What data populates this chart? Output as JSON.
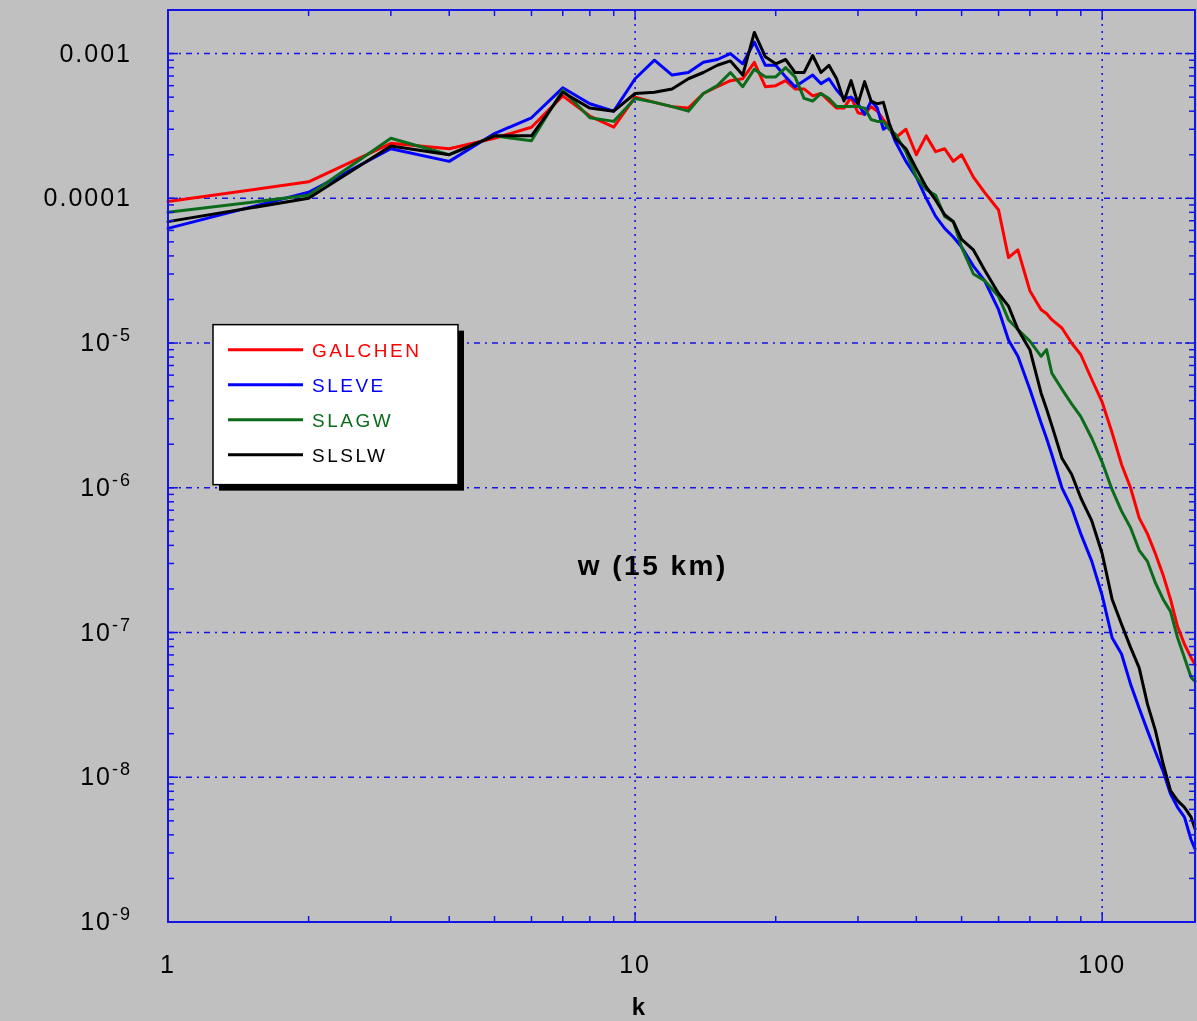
{
  "chart_data": {
    "type": "line",
    "title": "w (15 km)",
    "xlabel": "k",
    "log": "xy",
    "grid": true,
    "legend": "left",
    "xlim": [
      1,
      158
    ],
    "ylim": [
      1e-09,
      0.002
    ],
    "xticks": [
      1,
      {
        "value": 2,
        "label": null
      },
      {
        "value": 3,
        "label": null
      },
      {
        "value": 4,
        "label": null
      },
      {
        "value": 5,
        "label": null
      },
      {
        "value": 6,
        "label": null
      },
      {
        "value": 7,
        "label": null
      },
      {
        "value": 8,
        "label": null
      },
      {
        "value": 9,
        "label": null
      },
      10,
      {
        "value": 20,
        "label": null
      },
      {
        "value": 30,
        "label": null
      },
      {
        "value": 40,
        "label": null
      },
      {
        "value": 50,
        "label": null
      },
      {
        "value": 60,
        "label": null
      },
      {
        "value": 70,
        "label": null
      },
      {
        "value": 80,
        "label": null
      },
      {
        "value": 90,
        "label": null
      },
      100
    ],
    "yticks": [
      {
        "value": 1e-09,
        "label": "10$^{-9}$"
      },
      {
        "value": 2e-09,
        "label": null
      },
      {
        "value": 3e-09,
        "label": null
      },
      {
        "value": 4e-09,
        "label": null
      },
      {
        "value": 5e-09,
        "label": null
      },
      {
        "value": 6e-09,
        "label": null
      },
      {
        "value": 7e-09,
        "label": null
      },
      {
        "value": 8e-09,
        "label": null
      },
      {
        "value": 9e-09,
        "label": null
      },
      {
        "value": 1e-08,
        "label": "10$^{-8}$"
      },
      {
        "value": 2e-08,
        "label": null
      },
      {
        "value": 3e-08,
        "label": null
      },
      {
        "value": 4e-08,
        "label": null
      },
      {
        "value": 5e-08,
        "label": null
      },
      {
        "value": 6e-08,
        "label": null
      },
      {
        "value": 7e-08,
        "label": null
      },
      {
        "value": 8e-08,
        "label": null
      },
      {
        "value": 9e-08,
        "label": null
      },
      {
        "value": 1e-07,
        "label": "10$^{-7}$"
      },
      {
        "value": 2e-07,
        "label": null
      },
      {
        "value": 3e-07,
        "label": null
      },
      {
        "value": 4e-07,
        "label": null
      },
      {
        "value": 5e-07,
        "label": null
      },
      {
        "value": 6e-07,
        "label": null
      },
      {
        "value": 7e-07,
        "label": null
      },
      {
        "value": 8e-07,
        "label": null
      },
      {
        "value": 9e-07,
        "label": null
      },
      {
        "value": 1e-06,
        "label": "10$^{-6}$"
      },
      {
        "value": 2e-06,
        "label": null
      },
      {
        "value": 3e-06,
        "label": null
      },
      {
        "value": 4e-06,
        "label": null
      },
      {
        "value": 5e-06,
        "label": null
      },
      {
        "value": 6e-06,
        "label": null
      },
      {
        "value": 7e-06,
        "label": null
      },
      {
        "value": 8e-06,
        "label": null
      },
      {
        "value": 9e-06,
        "label": null
      },
      {
        "value": 1e-05,
        "label": "10$^{-5}$"
      },
      {
        "value": 2e-05,
        "label": null
      },
      {
        "value": 3e-05,
        "label": null
      },
      {
        "value": 4e-05,
        "label": null
      },
      {
        "value": 5e-05,
        "label": null
      },
      {
        "value": 6e-05,
        "label": null
      },
      {
        "value": 7e-05,
        "label": null
      },
      {
        "value": 8e-05,
        "label": null
      },
      {
        "value": 9e-05,
        "label": null
      },
      0.0001,
      {
        "value": 0.0002,
        "label": null
      },
      {
        "value": 0.0003,
        "label": null
      },
      {
        "value": 0.0004,
        "label": null
      },
      {
        "value": 0.0005,
        "label": null
      },
      {
        "value": 0.0006,
        "label": null
      },
      {
        "value": 0.0007,
        "label": null
      },
      {
        "value": 0.0008,
        "label": null
      },
      {
        "value": 0.0009,
        "label": null
      },
      0.001
    ],
    "x": [
      1,
      2,
      3,
      4,
      5,
      6,
      7,
      8,
      9,
      10,
      11,
      12,
      13,
      14,
      15,
      16,
      17,
      18,
      19,
      20,
      21,
      22,
      23,
      24,
      25,
      26,
      27,
      28,
      29,
      30,
      31,
      32,
      33,
      34,
      35,
      36,
      38,
      40,
      42,
      44,
      46,
      48,
      50,
      53,
      56,
      60,
      63,
      66,
      70,
      74,
      76,
      78,
      82,
      86,
      90,
      95,
      100,
      105,
      110,
      115,
      120,
      125,
      130,
      135,
      140,
      145,
      150,
      155,
      158
    ],
    "series": [
      {
        "name": "GALCHEN",
        "color": "#ff0000",
        "values": [
          9.5e-05,
          0.00013,
          0.00024,
          0.00022,
          0.00026,
          0.00031,
          0.00051,
          0.00037,
          0.00031,
          0.0005,
          0.00046,
          0.00043,
          0.00042,
          0.00053,
          0.00059,
          0.00065,
          0.00067,
          0.00087,
          0.00059,
          0.0006,
          0.00065,
          0.00057,
          0.00057,
          0.00051,
          0.00053,
          0.00047,
          0.00042,
          0.00042,
          0.0005,
          0.00039,
          0.00038,
          0.00043,
          0.0004,
          0.00035,
          0.00031,
          0.00026,
          0.0003,
          0.0002,
          0.00027,
          0.00021,
          0.00022,
          0.00018,
          0.0002,
          0.00014,
          0.00011,
          8.3e-05,
          3.9e-05,
          4.4e-05,
          2.3e-05,
          1.7e-05,
          1.6e-05,
          1.45e-05,
          1.27e-05,
          1e-05,
          8.3e-06,
          5.6e-06,
          3.9e-06,
          2.4e-06,
          1.45e-06,
          1e-06,
          6.2e-07,
          4.8e-07,
          3.5e-07,
          2.5e-07,
          1.7e-07,
          1.1e-07,
          8.3e-08,
          6.7e-08,
          6e-08
        ]
      },
      {
        "name": "SLEVE",
        "color": "#0000ff",
        "values": [
          6.2e-05,
          0.00011,
          0.00022,
          0.00018,
          0.00028,
          0.00036,
          0.00058,
          0.00045,
          0.0004,
          0.00067,
          0.0009,
          0.00071,
          0.00074,
          0.00087,
          0.00091,
          0.001,
          0.00085,
          0.0012,
          0.00083,
          0.00083,
          0.00069,
          0.00059,
          0.00065,
          0.00071,
          0.00062,
          0.00067,
          0.00056,
          0.00049,
          0.0005,
          0.00045,
          0.00038,
          0.00047,
          0.00042,
          0.0003,
          0.00032,
          0.00025,
          0.00018,
          0.00014,
          0.0001,
          7.5e-05,
          6.2e-05,
          5.4e-05,
          4.6e-05,
          3.4e-05,
          2.7e-05,
          1.7e-05,
          1.05e-05,
          8.1e-06,
          4.8e-06,
          2.8e-06,
          2.2e-06,
          1.7e-06,
          1e-06,
          7.3e-07,
          4.8e-07,
          3.1e-07,
          1.8e-07,
          9.2e-08,
          7.1e-08,
          4.4e-08,
          3e-08,
          2.1e-08,
          1.5e-08,
          1.1e-08,
          7.7e-09,
          6.2e-09,
          5.3e-09,
          3.7e-09,
          3.2e-09
        ]
      },
      {
        "name": "SLAGW",
        "color": "#0b6b1b",
        "values": [
          8e-05,
          0.000105,
          0.00026,
          0.0002,
          0.00027,
          0.00025,
          0.00056,
          0.00036,
          0.00034,
          0.00049,
          0.00046,
          0.00043,
          0.0004,
          0.00053,
          0.0006,
          0.00074,
          0.00059,
          0.00078,
          0.00069,
          0.00069,
          0.0008,
          0.00069,
          0.00049,
          0.00047,
          0.00053,
          0.00049,
          0.00043,
          0.00043,
          0.00043,
          0.00043,
          0.00042,
          0.00035,
          0.00034,
          0.00034,
          0.0003,
          0.00028,
          0.00021,
          0.00014,
          0.000115,
          0.000105,
          7.5e-05,
          6.9e-05,
          4.6e-05,
          3e-05,
          2.7e-05,
          2.1e-05,
          1.45e-05,
          1.24e-05,
          1.03e-05,
          8.1e-06,
          9e-06,
          6.2e-06,
          4.8e-06,
          3.8e-06,
          3.1e-06,
          2.2e-06,
          1.5e-06,
          9.7e-07,
          6.9e-07,
          5.3e-07,
          3.7e-07,
          3.1e-07,
          2.2e-07,
          1.7e-07,
          1.4e-07,
          9.2e-08,
          6.7e-08,
          4.9e-08,
          4.6e-08
        ]
      },
      {
        "name": "SLSLW",
        "color": "#000000",
        "values": [
          6.9e-05,
          0.0001,
          0.00023,
          0.0002,
          0.00027,
          0.00027,
          0.00054,
          0.00042,
          0.0004,
          0.00053,
          0.00054,
          0.00057,
          0.00067,
          0.00074,
          0.00083,
          0.00089,
          0.00071,
          0.0014,
          0.00095,
          0.00085,
          0.00091,
          0.00074,
          0.00074,
          0.00097,
          0.00074,
          0.00083,
          0.00067,
          0.00047,
          0.00065,
          0.00045,
          0.00064,
          0.00047,
          0.00045,
          0.00046,
          0.00033,
          0.00026,
          0.00022,
          0.00016,
          0.00012,
          9.7e-05,
          7.7e-05,
          6.9e-05,
          5.2e-05,
          4.4e-05,
          3.2e-05,
          2.2e-05,
          1.8e-05,
          1.24e-05,
          9e-06,
          4.5e-06,
          3.5e-06,
          2.7e-06,
          1.6e-06,
          1.24e-06,
          8.5e-07,
          5.9e-07,
          3.5e-07,
          1.7e-07,
          1.14e-07,
          7.9e-08,
          5.7e-08,
          3.2e-08,
          2.1e-08,
          1.24e-08,
          8.1e-09,
          6.9e-09,
          6.2e-09,
          5.3e-09,
          4.4e-09
        ]
      }
    ]
  }
}
